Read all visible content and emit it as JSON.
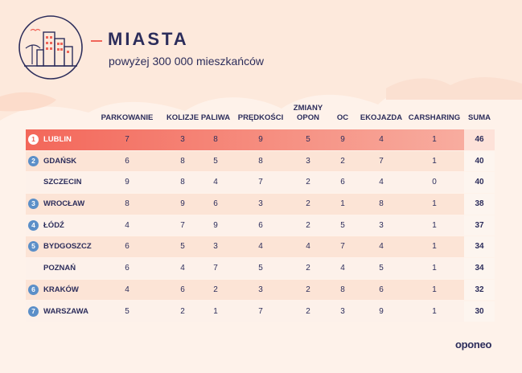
{
  "title": "MIASTA",
  "subtitle": "powyżej 300 000 mieszkańców",
  "columns": [
    "PARKOWANIE",
    "KOLIZJE",
    "PALIWA",
    "PRĘDKOŚCI",
    "ZMIANY OPON",
    "OC",
    "EKOJAZDA",
    "CARSHARING",
    "SUMA"
  ],
  "column_lines": [
    [
      "PARKOWANIE"
    ],
    [
      "KOLIZJE"
    ],
    [
      "PALIWA"
    ],
    [
      "PRĘDKOŚCI"
    ],
    [
      "ZMIANY",
      "OPON"
    ],
    [
      "OC"
    ],
    [
      "EKOJAZDA"
    ],
    [
      "CARSHARING"
    ],
    [
      "SUMA"
    ]
  ],
  "rows": [
    {
      "rank": "1",
      "city": "LUBLIN",
      "values": [
        "7",
        "3",
        "8",
        "9",
        "5",
        "9",
        "4",
        "1"
      ],
      "suma": "46"
    },
    {
      "rank": "2",
      "city": "GDAŃSK",
      "values": [
        "6",
        "8",
        "5",
        "8",
        "3",
        "2",
        "7",
        "1"
      ],
      "suma": "40"
    },
    {
      "rank": "",
      "city": "SZCZECIN",
      "values": [
        "9",
        "8",
        "4",
        "7",
        "2",
        "6",
        "4",
        "0"
      ],
      "suma": "40"
    },
    {
      "rank": "3",
      "city": "WROCŁAW",
      "values": [
        "8",
        "9",
        "6",
        "3",
        "2",
        "1",
        "8",
        "1"
      ],
      "suma": "38"
    },
    {
      "rank": "4",
      "city": "ŁÓDŹ",
      "values": [
        "4",
        "7",
        "9",
        "6",
        "2",
        "5",
        "3",
        "1"
      ],
      "suma": "37"
    },
    {
      "rank": "5",
      "city": "BYDGOSZCZ",
      "values": [
        "6",
        "5",
        "3",
        "4",
        "4",
        "7",
        "4",
        "1"
      ],
      "suma": "34"
    },
    {
      "rank": "",
      "city": "POZNAŃ",
      "values": [
        "6",
        "4",
        "7",
        "5",
        "2",
        "4",
        "5",
        "1"
      ],
      "suma": "34"
    },
    {
      "rank": "6",
      "city": "KRAKÓW",
      "values": [
        "4",
        "6",
        "2",
        "3",
        "2",
        "8",
        "6",
        "1"
      ],
      "suma": "32"
    },
    {
      "rank": "7",
      "city": "WARSZAWA",
      "values": [
        "5",
        "2",
        "1",
        "7",
        "2",
        "3",
        "9",
        "1"
      ],
      "suma": "30"
    }
  ],
  "logo": "oponeo",
  "colors": {
    "navy": "#2c2d5b",
    "accent": "#f0665a",
    "badge": "#5b8fc8",
    "background": "#fde9dc"
  },
  "icon": "city-skyline-icon"
}
